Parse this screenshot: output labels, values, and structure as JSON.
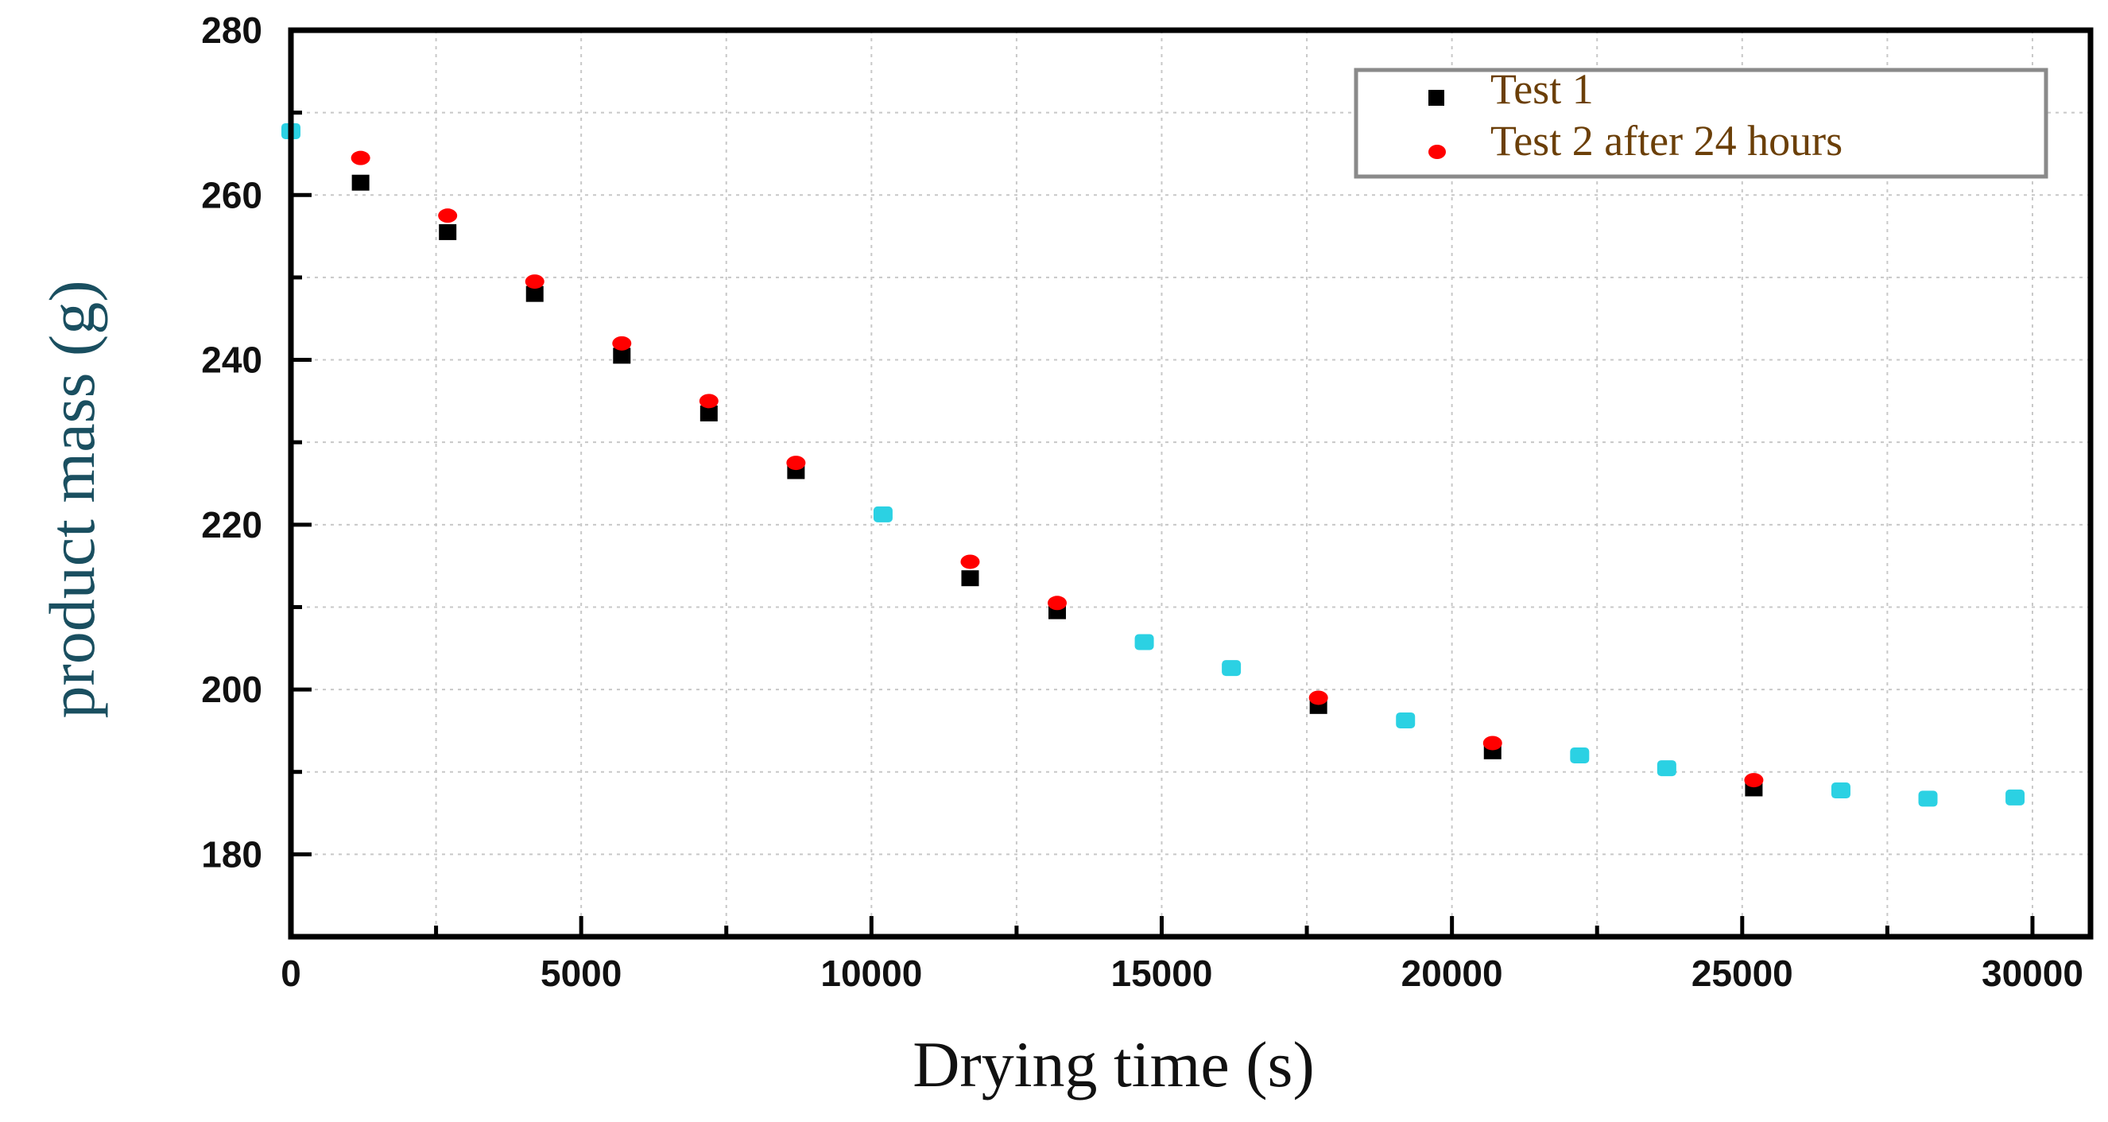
{
  "chart_data": {
    "type": "scatter",
    "title": "",
    "xlabel": "Drying time (s)",
    "ylabel": "product mass (g)",
    "xlim": [
      0,
      31000
    ],
    "ylim": [
      170,
      280
    ],
    "xticks": [
      0,
      5000,
      10000,
      15000,
      20000,
      25000,
      30000
    ],
    "yticks": [
      180,
      200,
      220,
      240,
      260,
      280
    ],
    "x_minor_step": 2500,
    "y_minor_step": 10,
    "grid": true,
    "legend_position": "top-right",
    "series": [
      {
        "name": "Test 1",
        "marker": "square",
        "color": "#000000",
        "x": [
          0,
          1200,
          2700,
          4200,
          5700,
          7200,
          8700,
          10200,
          11700,
          13200,
          14700,
          16200,
          17700,
          19200,
          20700,
          22200,
          23700,
          25200,
          26700,
          28200,
          29700
        ],
        "y": [
          267.5,
          261.5,
          255.5,
          248,
          240.5,
          233.5,
          226.5,
          221,
          213.5,
          209.5,
          205.5,
          202.5,
          198,
          196,
          192.5,
          191.8,
          190.3,
          188,
          187.5,
          186.5,
          187
        ]
      },
      {
        "name": "Test 2 after 24 hours",
        "marker": "circle",
        "color": "#ff0000",
        "x": [
          0,
          1200,
          2700,
          4200,
          5700,
          7200,
          8700,
          10200,
          11700,
          13200,
          14700,
          16200,
          17700,
          19200,
          20700,
          22200,
          23700,
          25200,
          26700,
          28200,
          29700
        ],
        "y": [
          268,
          264.5,
          257.5,
          249.5,
          242,
          235,
          227.5,
          221.5,
          215.5,
          210.5,
          206,
          202.7,
          199,
          196.5,
          193.5,
          192.2,
          190.6,
          189,
          188,
          187,
          186.8
        ]
      }
    ],
    "overlap_color": "#2bd1e3"
  }
}
